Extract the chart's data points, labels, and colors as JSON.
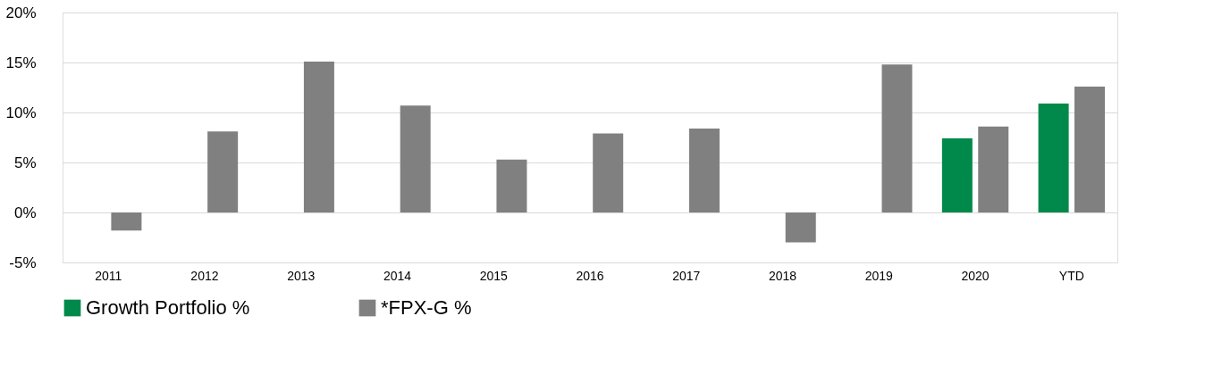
{
  "chart_data": {
    "type": "bar",
    "categories": [
      "2011",
      "2012",
      "2013",
      "2014",
      "2015",
      "2016",
      "2017",
      "2018",
      "2019",
      "2020",
      "YTD"
    ],
    "series": [
      {
        "name": "Growth Portfolio %",
        "color": "#00894b",
        "values": [
          null,
          null,
          null,
          null,
          null,
          null,
          null,
          null,
          null,
          7.4,
          10.9
        ]
      },
      {
        "name": "*FPX-G %",
        "color": "#808080",
        "values": [
          -1.8,
          8.1,
          15.1,
          10.7,
          5.3,
          7.9,
          8.4,
          -3.0,
          14.8,
          8.6,
          12.6
        ]
      }
    ],
    "ylim": [
      -5,
      20
    ],
    "yticks": [
      {
        "value": -5,
        "label": "-5%"
      },
      {
        "value": 0,
        "label": "0%"
      },
      {
        "value": 5,
        "label": "5%"
      },
      {
        "value": 10,
        "label": "10%"
      },
      {
        "value": 15,
        "label": "15%"
      },
      {
        "value": 20,
        "label": "20%"
      }
    ],
    "grid": "y",
    "legend": "bottom"
  }
}
